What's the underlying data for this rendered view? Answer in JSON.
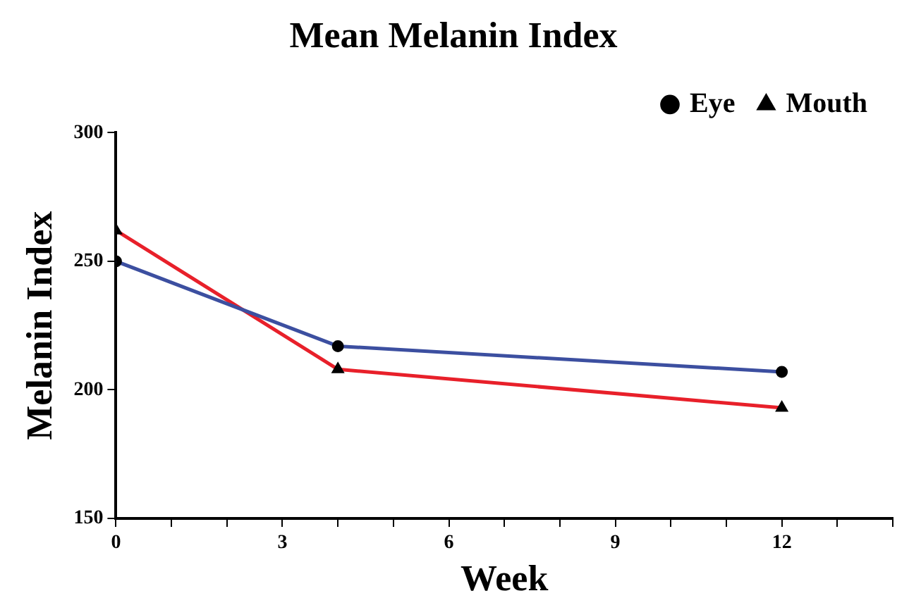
{
  "chart_data": {
    "type": "line",
    "title": "Mean Melanin Index",
    "xlabel": "Week",
    "ylabel": "Melanin Index",
    "x": [
      0,
      4,
      12
    ],
    "series": [
      {
        "name": "Eye",
        "color": "#3c4fa0",
        "marker": "circle",
        "values": [
          250,
          217,
          207
        ]
      },
      {
        "name": "Mouth",
        "color": "#e8202a",
        "marker": "triangle",
        "values": [
          262,
          208,
          193
        ]
      }
    ],
    "xlim": [
      0,
      14
    ],
    "xticks": [
      0,
      {
        "value": 1,
        "label": null
      },
      {
        "value": 2,
        "label": null
      },
      3,
      {
        "value": 4,
        "label": null
      },
      {
        "value": 5,
        "label": null
      },
      6,
      {
        "value": 7,
        "label": null
      },
      {
        "value": 8,
        "label": null
      },
      9,
      {
        "value": 10,
        "label": null
      },
      {
        "value": 11,
        "label": null
      },
      12,
      {
        "value": 13,
        "label": null
      },
      {
        "value": 14,
        "label": null
      }
    ],
    "ylim": [
      150,
      300
    ],
    "yticks": [
      150,
      200,
      250,
      300
    ],
    "grid": false,
    "legend": "top right",
    "line_style": "solid"
  }
}
